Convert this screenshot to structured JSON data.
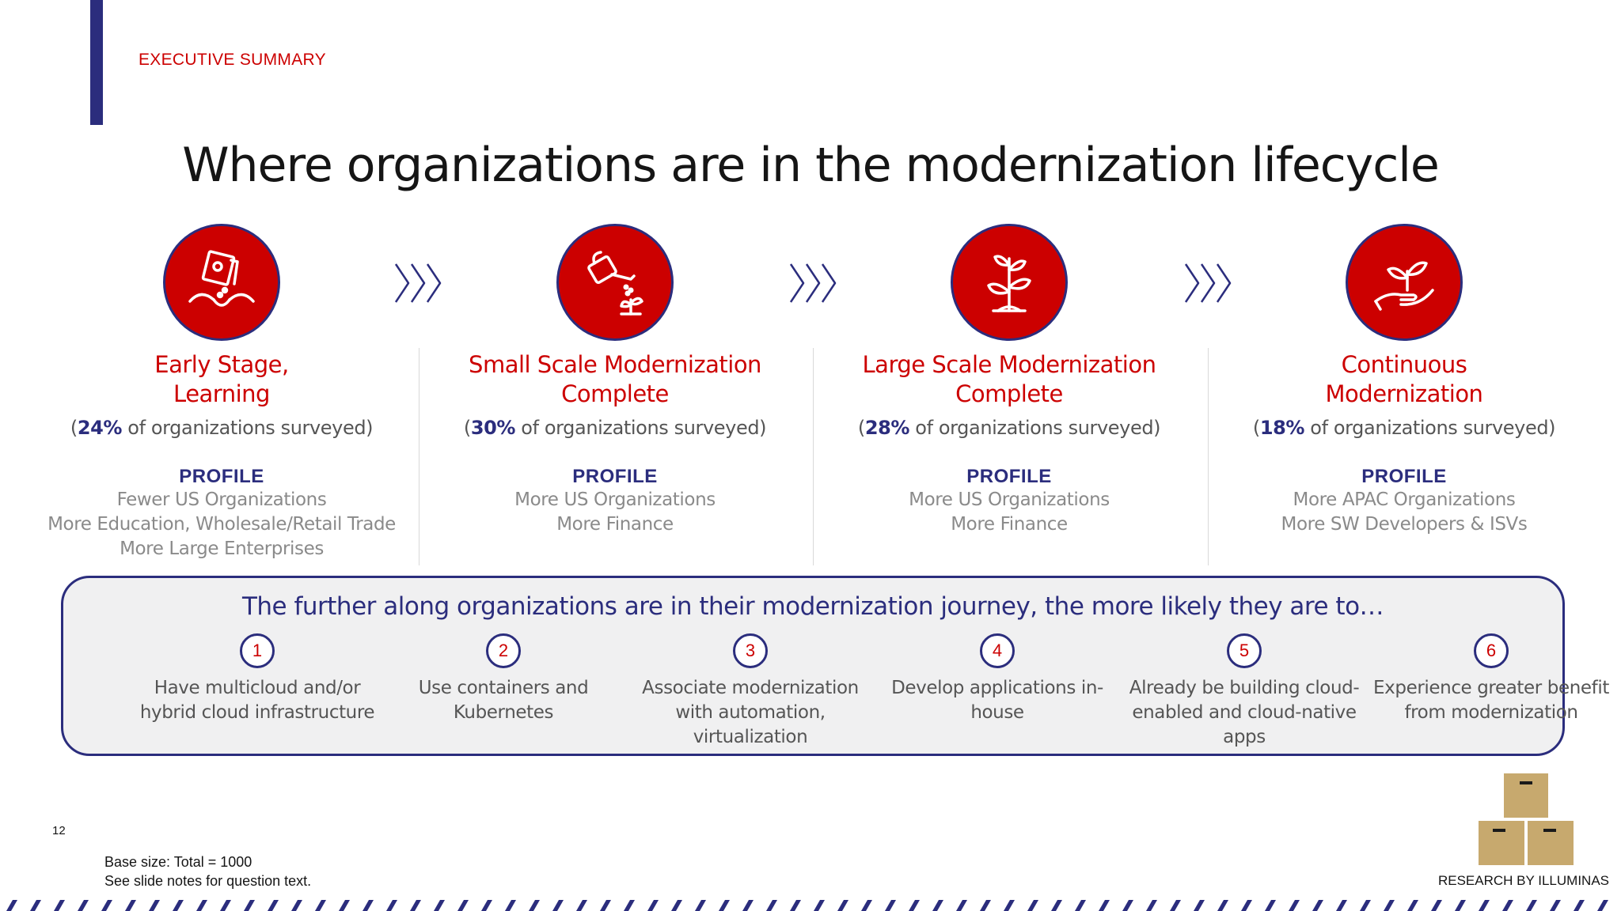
{
  "header": {
    "section_label": "EXECUTIVE SUMMARY"
  },
  "title": "Where organizations are in the modernization lifecycle",
  "colors": {
    "accent_red": "#cc0000",
    "navy": "#2b2d7d",
    "gray_text": "#8a8a8a"
  },
  "stages": [
    {
      "name": "Early Stage,\nLearning",
      "share_open": "(",
      "share_pct": "24%",
      "share_rest": " of organizations surveyed)",
      "icon": "seed-packet-soil-icon",
      "profile_heading": "PROFILE",
      "profile": [
        "Fewer US Organizations",
        "More Education, Wholesale/Retail Trade",
        "More Large Enterprises"
      ]
    },
    {
      "name": "Small Scale Modernization\nComplete",
      "share_open": "(",
      "share_pct": "30%",
      "share_rest": " of organizations surveyed)",
      "icon": "watering-can-sprout-icon",
      "profile_heading": "PROFILE",
      "profile": [
        "More US Organizations",
        "More Finance"
      ]
    },
    {
      "name": "Large Scale Modernization\nComplete",
      "share_open": "(",
      "share_pct": "28%",
      "share_rest": " of organizations surveyed)",
      "icon": "growing-plant-icon",
      "profile_heading": "PROFILE",
      "profile": [
        "More US Organizations",
        "More Finance"
      ]
    },
    {
      "name": "Continuous\nModernization",
      "share_open": "(",
      "share_pct": "18%",
      "share_rest": " of organizations surveyed)",
      "icon": "hand-holding-plant-icon",
      "profile_heading": "PROFILE",
      "profile": [
        "More APAC Organizations",
        "More SW Developers & ISVs"
      ]
    }
  ],
  "journey": {
    "heading": "The further along organizations are in their modernization journey, the more likely they are to…",
    "items": [
      {
        "number": "1",
        "text": "Have multicloud and/or hybrid cloud infrastructure"
      },
      {
        "number": "2",
        "text": "Use containers and Kubernetes"
      },
      {
        "number": "3",
        "text": "Associate modernization with automation, virtualization"
      },
      {
        "number": "4",
        "text": "Develop applications in-house"
      },
      {
        "number": "5",
        "text": "Already be building cloud-enabled and cloud-native apps"
      },
      {
        "number": "6",
        "text": "Experience greater benefit from modernization"
      }
    ]
  },
  "footer": {
    "page_number": "12",
    "base_size": "Base size: Total = 1000",
    "notes": "See slide notes for question text.",
    "credit": "RESEARCH BY ILLUMINAS"
  }
}
